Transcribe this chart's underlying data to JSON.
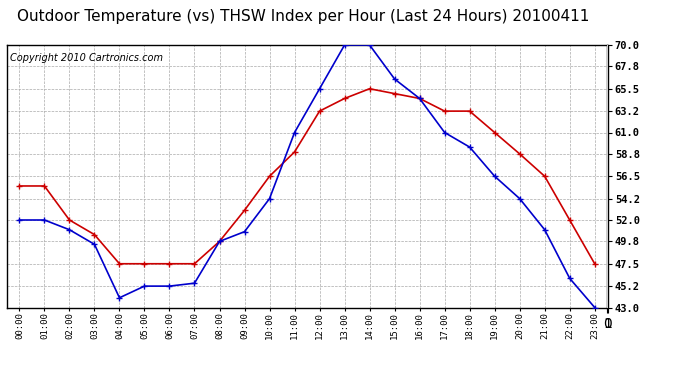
{
  "title": "Outdoor Temperature (vs) THSW Index per Hour (Last 24 Hours) 20100411",
  "copyright": "Copyright 2010 Cartronics.com",
  "hours": [
    "00:00",
    "01:00",
    "02:00",
    "03:00",
    "04:00",
    "05:00",
    "06:00",
    "07:00",
    "08:00",
    "09:00",
    "10:00",
    "11:00",
    "12:00",
    "13:00",
    "14:00",
    "15:00",
    "16:00",
    "17:00",
    "18:00",
    "19:00",
    "20:00",
    "21:00",
    "22:00",
    "23:00"
  ],
  "temp": [
    52.0,
    52.0,
    51.0,
    49.5,
    44.0,
    45.2,
    45.2,
    45.5,
    49.8,
    50.8,
    54.2,
    61.0,
    65.5,
    70.0,
    70.0,
    66.5,
    64.5,
    61.0,
    59.5,
    56.5,
    54.2,
    51.0,
    46.0,
    43.0
  ],
  "thsw": [
    55.5,
    55.5,
    52.0,
    50.5,
    47.5,
    47.5,
    47.5,
    47.5,
    49.8,
    53.0,
    56.5,
    59.0,
    63.2,
    64.5,
    65.5,
    65.0,
    64.5,
    63.2,
    63.2,
    61.0,
    58.8,
    56.5,
    52.0,
    47.5
  ],
  "ylim_min": 43.0,
  "ylim_max": 70.0,
  "yticks": [
    43.0,
    45.2,
    47.5,
    49.8,
    52.0,
    54.2,
    56.5,
    58.8,
    61.0,
    63.2,
    65.5,
    67.8,
    70.0
  ],
  "temp_color": "#0000CC",
  "thsw_color": "#CC0000",
  "bg_color": "#ffffff",
  "grid_color": "#aaaaaa",
  "title_fontsize": 11,
  "copyright_fontsize": 7
}
